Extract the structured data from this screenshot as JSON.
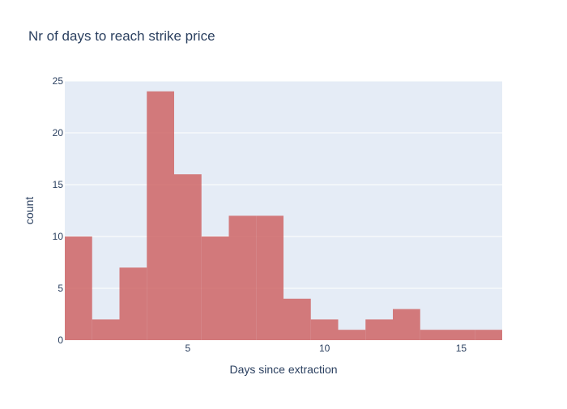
{
  "chart_data": {
    "type": "bar",
    "title": "Nr of days to reach strike price",
    "xlabel": "Days since extraction",
    "ylabel": "count",
    "bins": [
      {
        "x0": 0.5,
        "x1": 1.5,
        "count": 10
      },
      {
        "x0": 1.5,
        "x1": 2.5,
        "count": 2
      },
      {
        "x0": 2.5,
        "x1": 3.5,
        "count": 7
      },
      {
        "x0": 3.5,
        "x1": 4.5,
        "count": 24
      },
      {
        "x0": 4.5,
        "x1": 5.5,
        "count": 16
      },
      {
        "x0": 5.5,
        "x1": 6.5,
        "count": 10
      },
      {
        "x0": 6.5,
        "x1": 7.5,
        "count": 12
      },
      {
        "x0": 7.5,
        "x1": 8.5,
        "count": 12
      },
      {
        "x0": 8.5,
        "x1": 9.5,
        "count": 4
      },
      {
        "x0": 9.5,
        "x1": 10.5,
        "count": 2
      },
      {
        "x0": 10.5,
        "x1": 11.5,
        "count": 1
      },
      {
        "x0": 11.5,
        "x1": 12.5,
        "count": 2
      },
      {
        "x0": 12.5,
        "x1": 13.5,
        "count": 3
      },
      {
        "x0": 13.5,
        "x1": 14.5,
        "count": 1
      },
      {
        "x0": 14.5,
        "x1": 15.5,
        "count": 1
      },
      {
        "x0": 15.5,
        "x1": 16.5,
        "count": 1
      }
    ],
    "xlim": [
      0.5,
      16.5
    ],
    "ylim": [
      0,
      25
    ],
    "xticks": [
      5,
      10,
      15
    ],
    "yticks": [
      0,
      5,
      10,
      15,
      20,
      25
    ],
    "grid": true,
    "bar_color": "#cd5c5c",
    "plot_bg": "#e5ecf6",
    "grid_color": "#ffffff",
    "text_color": "#2a3f5f"
  }
}
